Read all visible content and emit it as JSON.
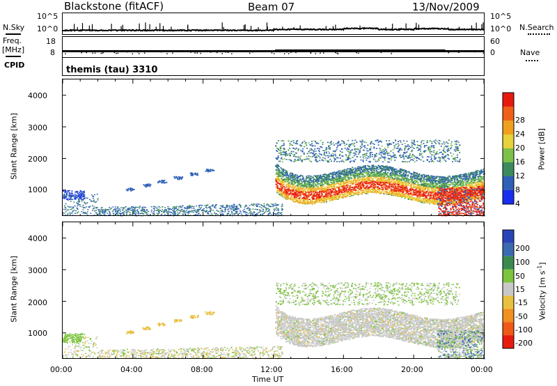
{
  "header": {
    "station": "Blackstone (fitACF)",
    "beam": "Beam 07",
    "date": "13/Nov/2009"
  },
  "side_labels": {
    "nsky": "N.Sky",
    "nsearch": "N.Search",
    "freq": "Freq.",
    "freq_unit": "[MHz]",
    "nave": "Nave",
    "cpid": "CPID"
  },
  "noise_panel": {
    "left_ticks": [
      "10^5",
      "10^0"
    ],
    "right_ticks": [
      "10^5",
      "10^0"
    ]
  },
  "freq_panel": {
    "left_ticks": [
      "18",
      "8"
    ],
    "right_ticks": [
      "60",
      "0"
    ]
  },
  "cpid_text": "themis (tau) 3310",
  "chart_data": [
    {
      "type": "heatmap",
      "name": "power",
      "ylabel": "Slant Range [km]",
      "xlabel": "Time UT",
      "x_ticks": [
        "00:00",
        "04:00",
        "08:00",
        "12:00",
        "16:00",
        "20:00",
        "00:00"
      ],
      "y_ticks": [
        "1000",
        "2000",
        "3000",
        "4000"
      ],
      "ylim": [
        180,
        4500
      ],
      "xlim_hours": [
        0,
        24
      ],
      "colorbar": {
        "label": "Power [dB]",
        "ticks": [
          "4",
          "8",
          "12",
          "16",
          "20",
          "24",
          "28"
        ],
        "colors": [
          "#1a2ef0",
          "#2f60b8",
          "#3d8a5e",
          "#7cc04a",
          "#e6d23a",
          "#f0a01e",
          "#f06018",
          "#e81a10"
        ]
      }
    },
    {
      "type": "heatmap",
      "name": "velocity",
      "ylabel": "Slant Range [km]",
      "xlabel": "Time UT",
      "x_ticks": [
        "00:00",
        "04:00",
        "08:00",
        "12:00",
        "16:00",
        "20:00",
        "00:00"
      ],
      "y_ticks": [
        "1000",
        "2000",
        "3000",
        "4000"
      ],
      "ylim": [
        180,
        4500
      ],
      "colorbar": {
        "label": "Velocity [m s",
        "label_sup": "-1",
        "label_end": "]",
        "ticks": [
          "200",
          "100",
          "50",
          "15",
          "-15",
          "-50",
          "-100",
          "-200"
        ],
        "colors": [
          "#2a44b8",
          "#3a6ab0",
          "#3a8a50",
          "#7cc43c",
          "#c8c8c8",
          "#e8c040",
          "#f09020",
          "#f05a14",
          "#e81a10"
        ]
      }
    }
  ]
}
